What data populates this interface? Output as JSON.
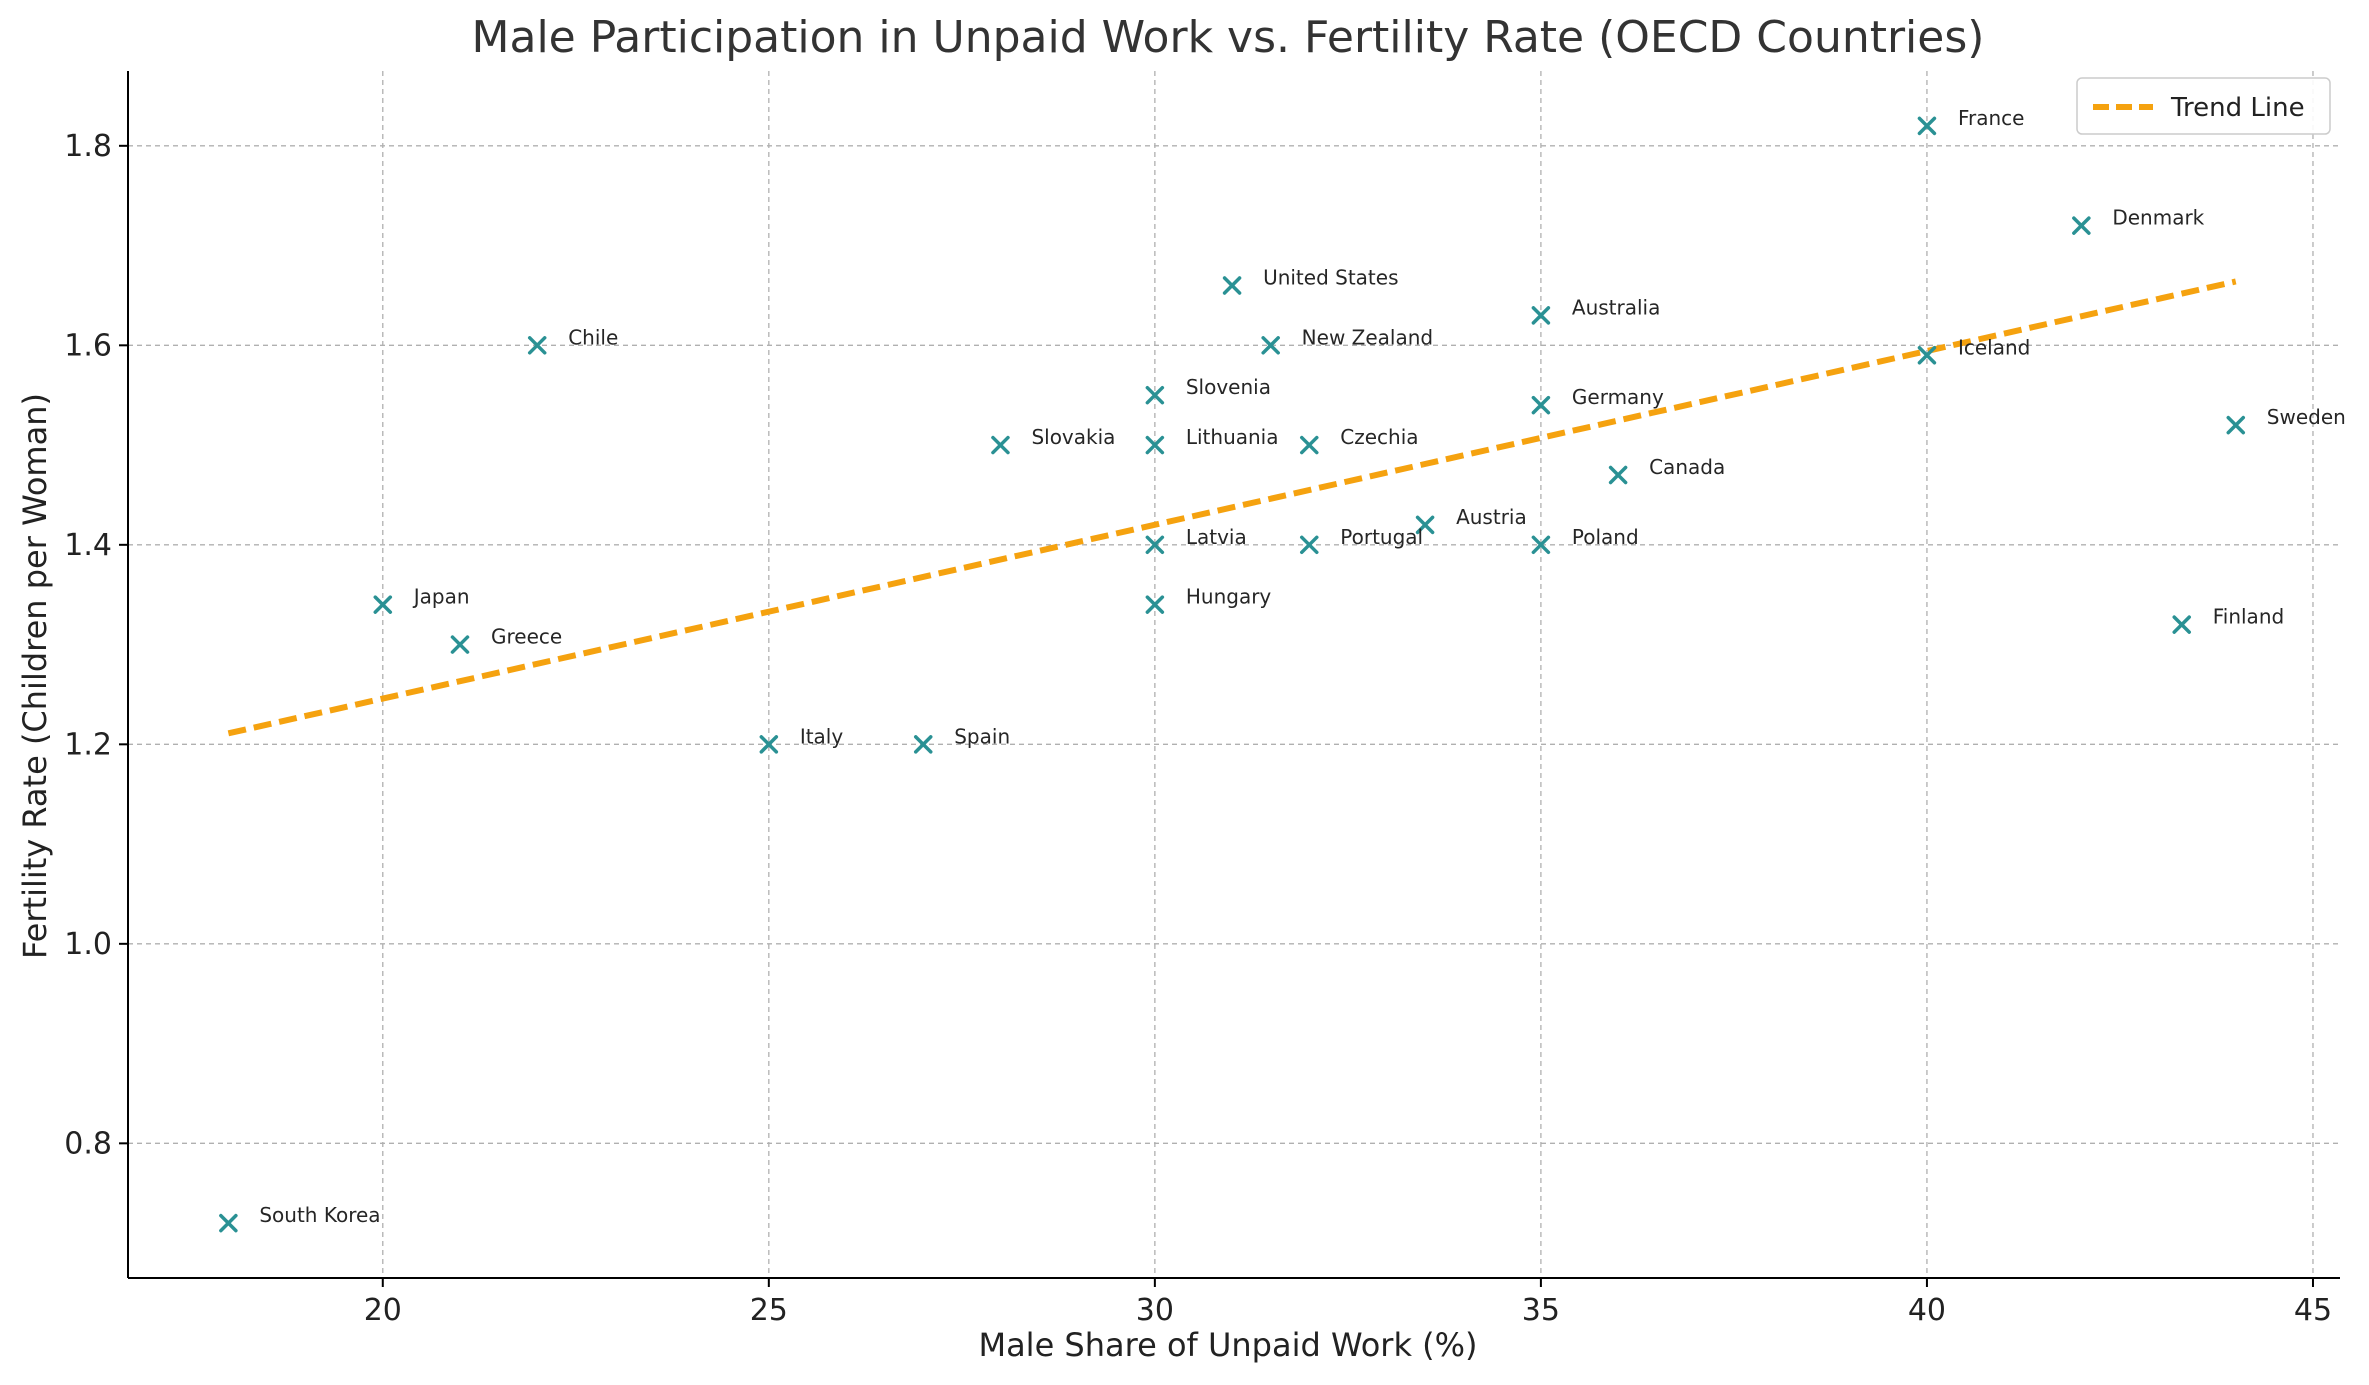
{
  "chart_data": {
    "type": "scatter",
    "title": "Male Participation in Unpaid Work vs. Fertility Rate (OECD Countries)",
    "xlabel": "Male Share of Unpaid Work (%)",
    "ylabel": "Fertility Rate (Children per Woman)",
    "xlim": [
      16.7,
      45.35
    ],
    "ylim": [
      0.665,
      1.875
    ],
    "xticks": [
      20,
      25,
      30,
      35,
      40,
      45
    ],
    "yticks": [
      0.8,
      1.0,
      1.2,
      1.4,
      1.6,
      1.8
    ],
    "xtick_labels": [
      "20",
      "25",
      "30",
      "35",
      "40",
      "45"
    ],
    "ytick_labels": [
      "0.8",
      "1.0",
      "1.2",
      "1.4",
      "1.6",
      "1.8"
    ],
    "grid": true,
    "marker_color": "#2a9194",
    "points": [
      {
        "label": "South Korea",
        "x": 18,
        "y": 0.72
      },
      {
        "label": "Japan",
        "x": 20,
        "y": 1.34
      },
      {
        "label": "Greece",
        "x": 21,
        "y": 1.3
      },
      {
        "label": "Chile",
        "x": 22,
        "y": 1.6
      },
      {
        "label": "Italy",
        "x": 25,
        "y": 1.2
      },
      {
        "label": "Spain",
        "x": 27,
        "y": 1.2
      },
      {
        "label": "Slovakia",
        "x": 28,
        "y": 1.5
      },
      {
        "label": "Slovenia",
        "x": 30,
        "y": 1.55
      },
      {
        "label": "Lithuania",
        "x": 30,
        "y": 1.5
      },
      {
        "label": "Latvia",
        "x": 30,
        "y": 1.4
      },
      {
        "label": "Hungary",
        "x": 30,
        "y": 1.34
      },
      {
        "label": "United States",
        "x": 31,
        "y": 1.66
      },
      {
        "label": "New Zealand",
        "x": 31.5,
        "y": 1.6
      },
      {
        "label": "Czechia",
        "x": 32,
        "y": 1.5
      },
      {
        "label": "Portugal",
        "x": 32,
        "y": 1.4
      },
      {
        "label": "Austria",
        "x": 33.5,
        "y": 1.42
      },
      {
        "label": "Australia",
        "x": 35,
        "y": 1.63
      },
      {
        "label": "Germany",
        "x": 35,
        "y": 1.54
      },
      {
        "label": "Poland",
        "x": 35,
        "y": 1.4
      },
      {
        "label": "Canada",
        "x": 36,
        "y": 1.47
      },
      {
        "label": "France",
        "x": 40,
        "y": 1.82
      },
      {
        "label": "Iceland",
        "x": 40,
        "y": 1.59
      },
      {
        "label": "Denmark",
        "x": 42,
        "y": 1.72
      },
      {
        "label": "Finland",
        "x": 43.3,
        "y": 1.32
      },
      {
        "label": "Sweden",
        "x": 44,
        "y": 1.52
      }
    ],
    "trend_line": {
      "name": "Trend Line",
      "color": "#f5a20f",
      "x": [
        18,
        44
      ],
      "y": [
        1.211,
        1.664
      ]
    },
    "legend": {
      "placement": "top-right",
      "entries": [
        "Trend Line"
      ]
    }
  }
}
